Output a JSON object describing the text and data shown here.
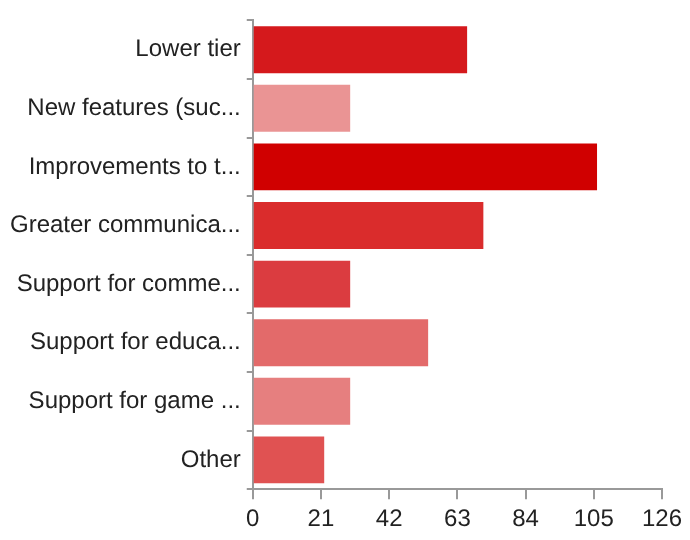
{
  "chart_data": {
    "type": "bar",
    "orientation": "horizontal",
    "categories": [
      "Lower tier",
      "New features (suc...",
      "Improvements to t...",
      "Greater communica...",
      "Support for comme...",
      "Support for educa...",
      "Support for game ...",
      "Other"
    ],
    "values": [
      66,
      30,
      106,
      71,
      30,
      54,
      30,
      22
    ],
    "colors": [
      "#d5191c",
      "#ea9494",
      "#d00000",
      "#da2c2c",
      "#db3c40",
      "#e36a6a",
      "#e67f7f",
      "#e05252"
    ],
    "xlim": [
      0,
      126
    ],
    "xticks": [
      0,
      21,
      42,
      63,
      84,
      105,
      126
    ],
    "grid": false,
    "legend": false
  }
}
